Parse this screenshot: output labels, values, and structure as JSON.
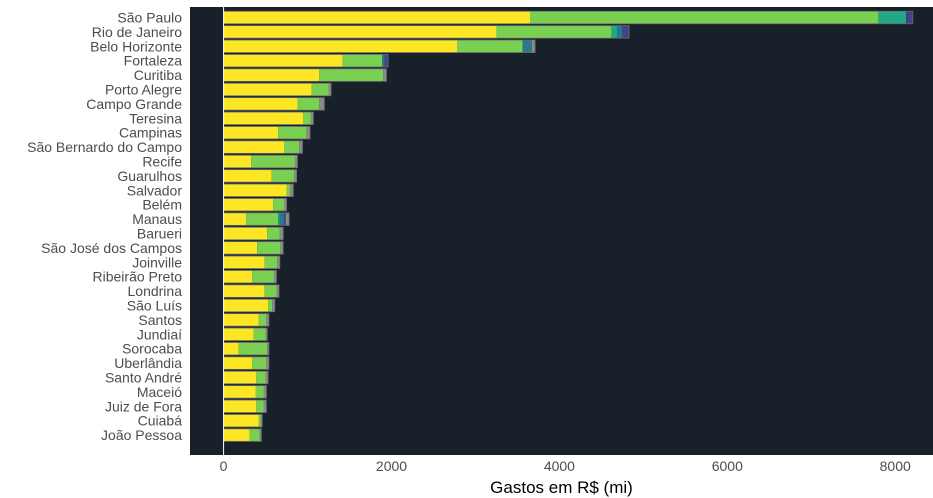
{
  "chart_data": {
    "type": "bar",
    "orientation": "horizontal",
    "stacked": true,
    "title": "",
    "xlabel": "Gastos em R$ (mi)",
    "ylabel": "",
    "xlim": [
      -400,
      8450
    ],
    "x_ticks": [
      0,
      2000,
      4000,
      6000,
      8000
    ],
    "grid": false,
    "legend": "none",
    "colors": {
      "panel_background": "#18202a",
      "bar_outline": "#6b6b6b",
      "axis_zero_line": "#ffffff"
    },
    "categories": [
      "São Paulo",
      "Rio de Janeiro",
      "Belo Horizonte",
      "Fortaleza",
      "Curitiba",
      "Porto Alegre",
      "Campo Grande",
      "Teresina",
      "Campinas",
      "São Bernardo do Campo",
      "Recife",
      "Guarulhos",
      "Salvador",
      "Belém",
      "Manaus",
      "Barueri",
      "São José dos Campos",
      "Joinville",
      "Ribeirão Preto",
      "Londrina",
      "São Luís",
      "Santos",
      "Jundiaí",
      "Sorocaba",
      "Uberlândia",
      "Santo André",
      "Maceió",
      "Juiz de Fora",
      "Cuiabá",
      "João Pessoa"
    ],
    "series": [
      {
        "color": "#fde725",
        "values": [
          3650,
          3250,
          2780,
          1420,
          1140,
          1050,
          880,
          950,
          650,
          720,
          330,
          570,
          750,
          590,
          270,
          520,
          400,
          490,
          340,
          490,
          530,
          420,
          360,
          180,
          340,
          390,
          380,
          390,
          420,
          310
        ]
      },
      {
        "color": "#7ad151",
        "values": [
          4150,
          1370,
          780,
          470,
          760,
          200,
          260,
          90,
          340,
          180,
          520,
          270,
          40,
          130,
          380,
          150,
          280,
          150,
          260,
          140,
          50,
          90,
          140,
          340,
          170,
          110,
          100,
          90,
          20,
          120
        ]
      },
      {
        "color": "#22a884",
        "values": [
          330,
          70,
          0,
          0,
          0,
          0,
          0,
          0,
          0,
          0,
          0,
          0,
          0,
          0,
          20,
          0,
          0,
          0,
          0,
          0,
          0,
          0,
          0,
          0,
          0,
          0,
          0,
          0,
          0,
          0
        ]
      },
      {
        "color": "#2a788e",
        "values": [
          0,
          60,
          110,
          30,
          0,
          0,
          0,
          0,
          0,
          0,
          0,
          0,
          0,
          0,
          50,
          0,
          0,
          0,
          0,
          0,
          0,
          0,
          0,
          0,
          0,
          0,
          0,
          0,
          0,
          0
        ]
      },
      {
        "color": "#414487",
        "values": [
          80,
          80,
          0,
          40,
          0,
          0,
          0,
          0,
          0,
          0,
          0,
          0,
          0,
          0,
          20,
          0,
          0,
          0,
          0,
          0,
          0,
          0,
          0,
          0,
          0,
          0,
          0,
          0,
          0,
          0
        ]
      },
      {
        "color": "#8a8a8a",
        "values": [
          0,
          0,
          40,
          0,
          40,
          30,
          60,
          30,
          40,
          40,
          30,
          30,
          40,
          30,
          40,
          40,
          30,
          30,
          30,
          30,
          30,
          30,
          20,
          20,
          30,
          30,
          30,
          30,
          20,
          20
        ]
      }
    ]
  }
}
